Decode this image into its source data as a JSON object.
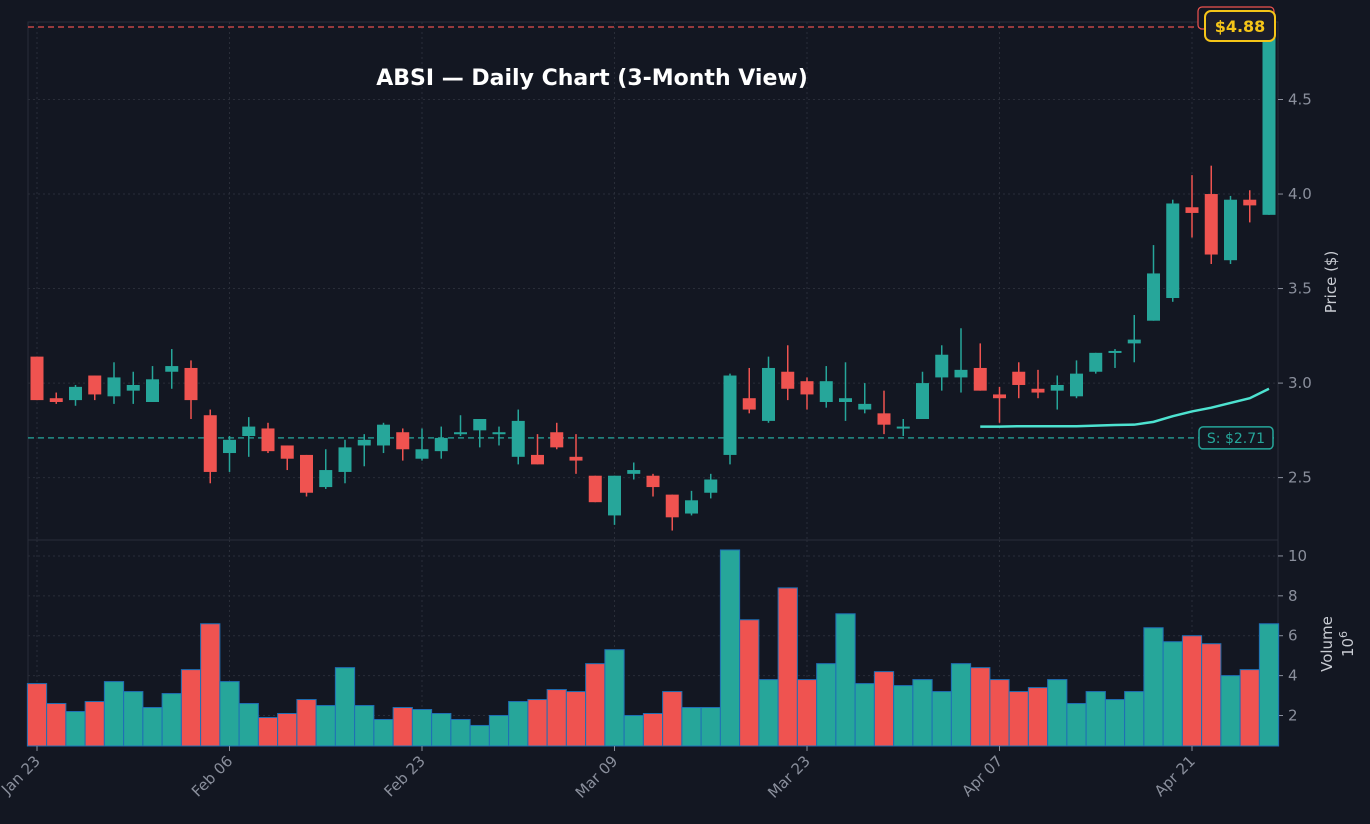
{
  "chart_data": {
    "type": "candlestick",
    "title": "ABSI — Daily Chart (3-Month View)",
    "ticker": "ABSI",
    "price_axis": {
      "label": "Price ($)",
      "ticks": [
        2.5,
        3.0,
        3.5,
        4.0,
        4.5
      ],
      "tick_labels": [
        "2.5",
        "3.0",
        "3.5",
        "4.0",
        "4.5"
      ],
      "ylim": [
        2.17,
        4.91
      ],
      "position": "right",
      "grid": true
    },
    "volume_axis": {
      "label": "Volume",
      "multiplier_label": "10",
      "multiplier_exp": "6",
      "ticks": [
        2,
        4,
        6,
        8,
        10
      ],
      "tick_labels": [
        "2",
        "4",
        "6",
        "8",
        "10"
      ],
      "ylim": [
        0.47,
        10.8
      ],
      "position": "right",
      "grid": true
    },
    "x_axis": {
      "tick_labels": [
        "Jan 23",
        "Feb 06",
        "Feb 23",
        "Mar 09",
        "Mar 23",
        "Apr 07",
        "Apr 21"
      ],
      "tick_indices": [
        0,
        10,
        20,
        30,
        40,
        50,
        60
      ],
      "rotation": -45
    },
    "colors": {
      "up": "#26a69a",
      "down": "#ef5350",
      "volume_edge": "#1f6fb5",
      "background": "#131722",
      "grid": "#2a2e39",
      "ma_line": "#4de2d0",
      "resistance": "#ef5350",
      "support": "#26a69a",
      "last_price": "#f5c518"
    },
    "resistance": {
      "value": 4.88,
      "label": "$4.88"
    },
    "support": {
      "value": 2.71,
      "label": "S: $2.71"
    },
    "last_price": {
      "value": 4.88,
      "label": "$4.88"
    },
    "moving_average": {
      "start_index": 49,
      "values": [
        2.77,
        2.77,
        2.772,
        2.772,
        2.772,
        2.772,
        2.775,
        2.778,
        2.78,
        2.795,
        2.825,
        2.85,
        2.87,
        2.895,
        2.92,
        2.97
      ]
    },
    "candles": [
      {
        "o": 3.14,
        "h": 3.14,
        "l": 2.91,
        "c": 2.91,
        "v": 3.6
      },
      {
        "o": 2.92,
        "h": 2.95,
        "l": 2.89,
        "c": 2.9,
        "v": 2.6
      },
      {
        "o": 2.91,
        "h": 2.99,
        "l": 2.88,
        "c": 2.98,
        "v": 2.2
      },
      {
        "o": 3.04,
        "h": 3.04,
        "l": 2.91,
        "c": 2.94,
        "v": 2.7
      },
      {
        "o": 2.93,
        "h": 3.11,
        "l": 2.89,
        "c": 3.03,
        "v": 3.7
      },
      {
        "o": 2.96,
        "h": 3.06,
        "l": 2.89,
        "c": 2.99,
        "v": 3.2
      },
      {
        "o": 2.9,
        "h": 3.09,
        "l": 2.9,
        "c": 3.02,
        "v": 2.4
      },
      {
        "o": 3.06,
        "h": 3.18,
        "l": 2.97,
        "c": 3.09,
        "v": 3.1
      },
      {
        "o": 3.08,
        "h": 3.12,
        "l": 2.81,
        "c": 2.91,
        "v": 4.3
      },
      {
        "o": 2.83,
        "h": 2.86,
        "l": 2.47,
        "c": 2.53,
        "v": 6.6
      },
      {
        "o": 2.63,
        "h": 2.72,
        "l": 2.53,
        "c": 2.7,
        "v": 3.7
      },
      {
        "o": 2.72,
        "h": 2.82,
        "l": 2.61,
        "c": 2.77,
        "v": 2.6
      },
      {
        "o": 2.76,
        "h": 2.79,
        "l": 2.63,
        "c": 2.64,
        "v": 1.9
      },
      {
        "o": 2.67,
        "h": 2.67,
        "l": 2.54,
        "c": 2.6,
        "v": 2.1
      },
      {
        "o": 2.62,
        "h": 2.62,
        "l": 2.4,
        "c": 2.42,
        "v": 2.8
      },
      {
        "o": 2.45,
        "h": 2.65,
        "l": 2.44,
        "c": 2.54,
        "v": 2.5
      },
      {
        "o": 2.53,
        "h": 2.7,
        "l": 2.47,
        "c": 2.66,
        "v": 4.4
      },
      {
        "o": 2.67,
        "h": 2.73,
        "l": 2.56,
        "c": 2.7,
        "v": 2.5
      },
      {
        "o": 2.67,
        "h": 2.79,
        "l": 2.63,
        "c": 2.78,
        "v": 1.8
      },
      {
        "o": 2.74,
        "h": 2.76,
        "l": 2.59,
        "c": 2.65,
        "v": 2.4
      },
      {
        "o": 2.6,
        "h": 2.76,
        "l": 2.59,
        "c": 2.65,
        "v": 2.3
      },
      {
        "o": 2.64,
        "h": 2.77,
        "l": 2.6,
        "c": 2.71,
        "v": 2.1
      },
      {
        "o": 2.74,
        "h": 2.83,
        "l": 2.72,
        "c": 2.74,
        "v": 1.8
      },
      {
        "o": 2.75,
        "h": 2.81,
        "l": 2.66,
        "c": 2.81,
        "v": 1.5
      },
      {
        "o": 2.73,
        "h": 2.77,
        "l": 2.67,
        "c": 2.74,
        "v": 2.0
      },
      {
        "o": 2.61,
        "h": 2.86,
        "l": 2.57,
        "c": 2.8,
        "v": 2.7
      },
      {
        "o": 2.62,
        "h": 2.73,
        "l": 2.57,
        "c": 2.57,
        "v": 2.8
      },
      {
        "o": 2.74,
        "h": 2.79,
        "l": 2.65,
        "c": 2.66,
        "v": 3.3
      },
      {
        "o": 2.61,
        "h": 2.73,
        "l": 2.52,
        "c": 2.59,
        "v": 3.2
      },
      {
        "o": 2.51,
        "h": 2.51,
        "l": 2.37,
        "c": 2.37,
        "v": 4.6
      },
      {
        "o": 2.3,
        "h": 2.51,
        "l": 2.25,
        "c": 2.51,
        "v": 5.3
      },
      {
        "o": 2.52,
        "h": 2.58,
        "l": 2.49,
        "c": 2.54,
        "v": 2.0
      },
      {
        "o": 2.51,
        "h": 2.52,
        "l": 2.4,
        "c": 2.45,
        "v": 2.1
      },
      {
        "o": 2.41,
        "h": 2.41,
        "l": 2.22,
        "c": 2.29,
        "v": 3.2
      },
      {
        "o": 2.31,
        "h": 2.43,
        "l": 2.3,
        "c": 2.38,
        "v": 2.4
      },
      {
        "o": 2.42,
        "h": 2.52,
        "l": 2.39,
        "c": 2.49,
        "v": 2.4
      },
      {
        "o": 2.62,
        "h": 3.05,
        "l": 2.57,
        "c": 3.04,
        "v": 10.3
      },
      {
        "o": 2.92,
        "h": 3.08,
        "l": 2.84,
        "c": 2.86,
        "v": 6.8
      },
      {
        "o": 2.8,
        "h": 3.14,
        "l": 2.79,
        "c": 3.08,
        "v": 3.8
      },
      {
        "o": 3.06,
        "h": 3.2,
        "l": 2.91,
        "c": 2.97,
        "v": 8.4
      },
      {
        "o": 3.01,
        "h": 3.03,
        "l": 2.86,
        "c": 2.94,
        "v": 3.8
      },
      {
        "o": 2.9,
        "h": 3.09,
        "l": 2.87,
        "c": 3.01,
        "v": 4.6
      },
      {
        "o": 2.9,
        "h": 3.11,
        "l": 2.8,
        "c": 2.92,
        "v": 7.1
      },
      {
        "o": 2.86,
        "h": 3.0,
        "l": 2.84,
        "c": 2.89,
        "v": 3.6
      },
      {
        "o": 2.84,
        "h": 2.96,
        "l": 2.73,
        "c": 2.78,
        "v": 4.2
      },
      {
        "o": 2.76,
        "h": 2.81,
        "l": 2.72,
        "c": 2.77,
        "v": 3.5
      },
      {
        "o": 2.81,
        "h": 3.06,
        "l": 2.81,
        "c": 3.0,
        "v": 3.8
      },
      {
        "o": 3.03,
        "h": 3.2,
        "l": 2.96,
        "c": 3.15,
        "v": 3.2
      },
      {
        "o": 3.03,
        "h": 3.29,
        "l": 2.95,
        "c": 3.07,
        "v": 4.6
      },
      {
        "o": 3.08,
        "h": 3.21,
        "l": 2.96,
        "c": 2.96,
        "v": 4.4
      },
      {
        "o": 2.94,
        "h": 2.98,
        "l": 2.79,
        "c": 2.92,
        "v": 3.8
      },
      {
        "o": 3.06,
        "h": 3.11,
        "l": 2.92,
        "c": 2.99,
        "v": 3.2
      },
      {
        "o": 2.97,
        "h": 3.07,
        "l": 2.92,
        "c": 2.95,
        "v": 3.4
      },
      {
        "o": 2.96,
        "h": 3.04,
        "l": 2.86,
        "c": 2.99,
        "v": 3.8
      },
      {
        "o": 2.93,
        "h": 3.12,
        "l": 2.92,
        "c": 3.05,
        "v": 2.6
      },
      {
        "o": 3.06,
        "h": 3.16,
        "l": 3.05,
        "c": 3.16,
        "v": 3.2
      },
      {
        "o": 3.16,
        "h": 3.18,
        "l": 3.08,
        "c": 3.17,
        "v": 2.8
      },
      {
        "o": 3.21,
        "h": 3.36,
        "l": 3.11,
        "c": 3.23,
        "v": 3.2
      },
      {
        "o": 3.33,
        "h": 3.73,
        "l": 3.33,
        "c": 3.58,
        "v": 6.4
      },
      {
        "o": 3.45,
        "h": 3.97,
        "l": 3.43,
        "c": 3.95,
        "v": 5.7
      },
      {
        "o": 3.93,
        "h": 4.1,
        "l": 3.77,
        "c": 3.9,
        "v": 6.0
      },
      {
        "o": 4.0,
        "h": 4.15,
        "l": 3.63,
        "c": 3.68,
        "v": 5.6
      },
      {
        "o": 3.65,
        "h": 3.99,
        "l": 3.63,
        "c": 3.97,
        "v": 4.0
      },
      {
        "o": 3.97,
        "h": 4.02,
        "l": 3.85,
        "c": 3.94,
        "v": 4.3
      },
      {
        "o": 3.89,
        "h": 4.88,
        "l": 3.89,
        "c": 4.88,
        "v": 6.6
      }
    ]
  }
}
